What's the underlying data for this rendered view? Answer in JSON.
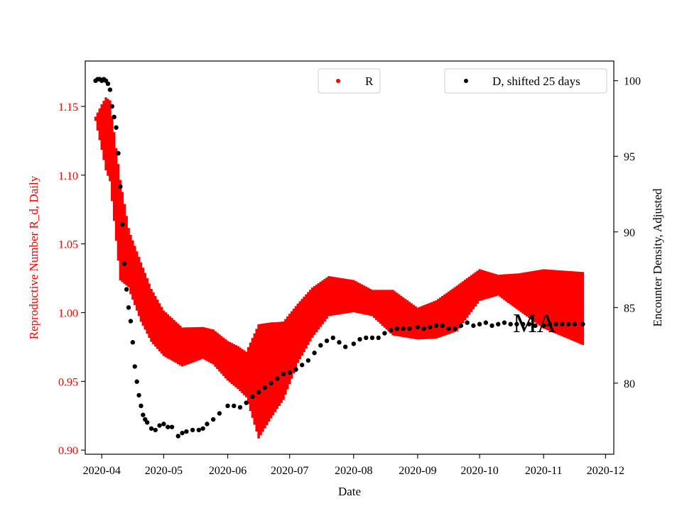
{
  "chart_data": {
    "type": "scatter",
    "xlabel": "Date",
    "x_ticks": [
      "2020-04",
      "2020-05",
      "2020-06",
      "2020-07",
      "2020-08",
      "2020-09",
      "2020-10",
      "2020-11",
      "2020-12"
    ],
    "xlim": [
      "2020-03-24",
      "2020-12-05"
    ],
    "left_axis": {
      "label": "Reproductive Number R_d, Daily",
      "ylim": [
        0.897,
        1.183
      ],
      "ticks": [
        "0.90",
        "0.95",
        "1.00",
        "1.05",
        "1.10",
        "1.15"
      ],
      "color": "#ff0000"
    },
    "right_axis": {
      "label": "Encounter Density, Adjusted",
      "ylim": [
        75.3,
        101.3
      ],
      "ticks": [
        "80",
        "85",
        "90",
        "95",
        "100"
      ],
      "color": "#000000"
    },
    "annotation": "MA",
    "legend_r": {
      "label": "R",
      "placement": "upper-center"
    },
    "legend_d": {
      "label": "D, shifted 25 days",
      "placement": "upper-right"
    },
    "grid": false,
    "series": [
      {
        "name": "R",
        "axis": "left",
        "color": "#ff0000",
        "date_range": [
          "2020-03-29",
          "2020-11-20"
        ],
        "mid_points": [
          [
            "2020-03-29",
            1.141
          ],
          [
            "2020-04-01",
            1.135
          ],
          [
            "2020-04-05",
            1.125
          ],
          [
            "2020-04-10",
            1.06
          ],
          [
            "2020-04-15",
            1.035
          ],
          [
            "2020-04-20",
            1.015
          ],
          [
            "2020-04-25",
            0.998
          ],
          [
            "2020-05-01",
            0.985
          ],
          [
            "2020-05-10",
            0.975
          ],
          [
            "2020-05-20",
            0.978
          ],
          [
            "2020-05-25",
            0.975
          ],
          [
            "2020-06-01",
            0.965
          ],
          [
            "2020-06-06",
            0.96
          ],
          [
            "2020-06-10",
            0.955
          ],
          [
            "2020-06-16",
            0.95
          ],
          [
            "2020-06-22",
            0.958
          ],
          [
            "2020-06-28",
            0.965
          ],
          [
            "2020-07-05",
            0.985
          ],
          [
            "2020-07-12",
            1.0
          ],
          [
            "2020-07-20",
            1.012
          ],
          [
            "2020-08-01",
            1.012
          ],
          [
            "2020-08-10",
            1.007
          ],
          [
            "2020-08-20",
            1.0
          ],
          [
            "2020-09-01",
            0.992
          ],
          [
            "2020-09-10",
            0.995
          ],
          [
            "2020-09-20",
            1.003
          ],
          [
            "2020-10-01",
            1.02
          ],
          [
            "2020-10-10",
            1.02
          ],
          [
            "2020-10-20",
            1.015
          ],
          [
            "2020-11-01",
            1.01
          ],
          [
            "2020-11-20",
            1.003
          ]
        ],
        "half_width": [
          [
            "2020-03-29",
            0.0
          ],
          [
            "2020-04-03",
            0.025
          ],
          [
            "2020-04-10",
            0.035
          ],
          [
            "2020-04-14",
            0.02
          ],
          [
            "2020-04-20",
            0.02
          ],
          [
            "2020-05-01",
            0.015
          ],
          [
            "2020-05-20",
            0.01
          ],
          [
            "2020-06-10",
            0.015
          ],
          [
            "2020-06-16",
            0.04
          ],
          [
            "2020-06-25",
            0.03
          ],
          [
            "2020-07-05",
            0.02
          ],
          [
            "2020-07-20",
            0.013
          ],
          [
            "2020-08-10",
            0.008
          ],
          [
            "2020-08-20",
            0.015
          ],
          [
            "2020-09-01",
            0.01
          ],
          [
            "2020-09-20",
            0.015
          ],
          [
            "2020-10-10",
            0.006
          ],
          [
            "2020-10-20",
            0.012
          ],
          [
            "2020-11-01",
            0.02
          ],
          [
            "2020-11-20",
            0.025
          ]
        ]
      },
      {
        "name": "D, shifted 25 days",
        "axis": "right",
        "color": "#000000",
        "points": [
          [
            "2020-03-29",
            100.0
          ],
          [
            "2020-03-30",
            100.1
          ],
          [
            "2020-03-31",
            100.1
          ],
          [
            "2020-04-01",
            100.0
          ],
          [
            "2020-04-02",
            100.1
          ],
          [
            "2020-04-03",
            100.0
          ],
          [
            "2020-04-04",
            99.8
          ],
          [
            "2020-04-05",
            99.4
          ],
          [
            "2020-04-06",
            98.3
          ],
          [
            "2020-04-07",
            97.6
          ],
          [
            "2020-04-08",
            96.9
          ],
          [
            "2020-04-09",
            95.2
          ],
          [
            "2020-04-10",
            93.0
          ],
          [
            "2020-04-11",
            90.5
          ],
          [
            "2020-04-12",
            87.9
          ],
          [
            "2020-04-13",
            86.2
          ],
          [
            "2020-04-14",
            85.0
          ],
          [
            "2020-04-15",
            84.1
          ],
          [
            "2020-04-16",
            82.7
          ],
          [
            "2020-04-17",
            81.1
          ],
          [
            "2020-04-18",
            80.1
          ],
          [
            "2020-04-19",
            79.2
          ],
          [
            "2020-04-20",
            78.5
          ],
          [
            "2020-04-21",
            77.9
          ],
          [
            "2020-04-22",
            77.6
          ],
          [
            "2020-04-23",
            77.4
          ],
          [
            "2020-04-25",
            77.0
          ],
          [
            "2020-04-27",
            76.9
          ],
          [
            "2020-04-29",
            77.2
          ],
          [
            "2020-05-01",
            77.3
          ],
          [
            "2020-05-03",
            77.1
          ],
          [
            "2020-05-05",
            77.1
          ],
          [
            "2020-05-08",
            76.5
          ],
          [
            "2020-05-10",
            76.7
          ],
          [
            "2020-05-12",
            76.8
          ],
          [
            "2020-05-15",
            76.9
          ],
          [
            "2020-05-18",
            76.9
          ],
          [
            "2020-05-20",
            77.0
          ],
          [
            "2020-05-22",
            77.3
          ],
          [
            "2020-05-25",
            77.6
          ],
          [
            "2020-05-28",
            78.0
          ],
          [
            "2020-06-01",
            78.5
          ],
          [
            "2020-06-04",
            78.5
          ],
          [
            "2020-06-07",
            78.4
          ],
          [
            "2020-06-10",
            78.7
          ],
          [
            "2020-06-13",
            79.1
          ],
          [
            "2020-06-16",
            79.4
          ],
          [
            "2020-06-19",
            79.7
          ],
          [
            "2020-06-22",
            80.0
          ],
          [
            "2020-06-25",
            80.3
          ],
          [
            "2020-06-28",
            80.6
          ],
          [
            "2020-07-01",
            80.7
          ],
          [
            "2020-07-04",
            80.9
          ],
          [
            "2020-07-07",
            81.2
          ],
          [
            "2020-07-10",
            81.5
          ],
          [
            "2020-07-13",
            82.0
          ],
          [
            "2020-07-16",
            82.5
          ],
          [
            "2020-07-19",
            82.8
          ],
          [
            "2020-07-22",
            83.0
          ],
          [
            "2020-07-25",
            82.7
          ],
          [
            "2020-07-28",
            82.4
          ],
          [
            "2020-08-01",
            82.6
          ],
          [
            "2020-08-04",
            82.9
          ],
          [
            "2020-08-07",
            83.0
          ],
          [
            "2020-08-10",
            83.0
          ],
          [
            "2020-08-13",
            83.0
          ],
          [
            "2020-08-16",
            83.3
          ],
          [
            "2020-08-19",
            83.5
          ],
          [
            "2020-08-22",
            83.6
          ],
          [
            "2020-08-25",
            83.6
          ],
          [
            "2020-08-28",
            83.6
          ],
          [
            "2020-09-01",
            83.7
          ],
          [
            "2020-09-04",
            83.6
          ],
          [
            "2020-09-07",
            83.7
          ],
          [
            "2020-09-10",
            83.8
          ],
          [
            "2020-09-13",
            83.8
          ],
          [
            "2020-09-16",
            83.6
          ],
          [
            "2020-09-19",
            83.6
          ],
          [
            "2020-09-22",
            83.8
          ],
          [
            "2020-09-25",
            84.0
          ],
          [
            "2020-09-28",
            83.8
          ],
          [
            "2020-10-01",
            83.9
          ],
          [
            "2020-10-04",
            84.0
          ],
          [
            "2020-10-07",
            83.8
          ],
          [
            "2020-10-10",
            83.9
          ],
          [
            "2020-10-13",
            84.0
          ],
          [
            "2020-10-16",
            83.9
          ],
          [
            "2020-10-19",
            83.9
          ],
          [
            "2020-10-22",
            83.9
          ],
          [
            "2020-10-25",
            83.9
          ],
          [
            "2020-10-28",
            83.8
          ],
          [
            "2020-11-01",
            83.8
          ],
          [
            "2020-11-04",
            83.9
          ],
          [
            "2020-11-07",
            83.9
          ],
          [
            "2020-11-10",
            83.9
          ],
          [
            "2020-11-13",
            83.9
          ],
          [
            "2020-11-16",
            83.9
          ],
          [
            "2020-11-20",
            83.9
          ]
        ]
      }
    ]
  }
}
